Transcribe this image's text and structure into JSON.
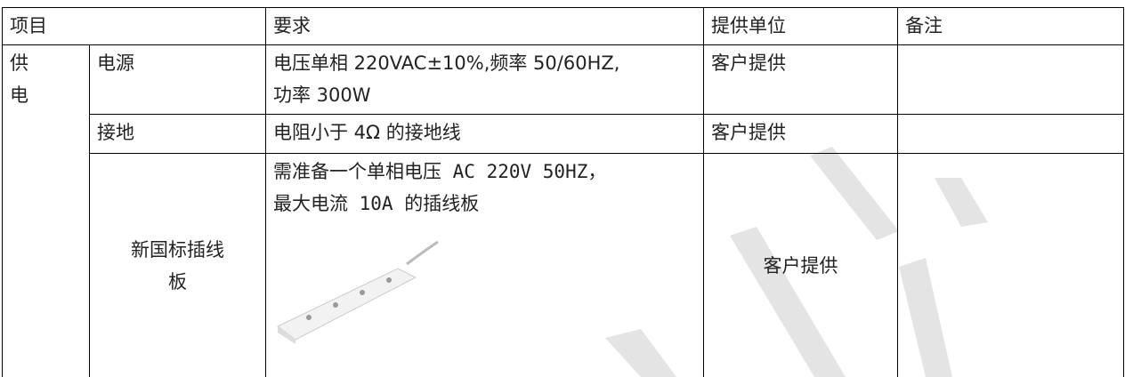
{
  "table": {
    "header": [
      "项目",
      "要求",
      "提供单位",
      "备注"
    ],
    "group": [
      "供",
      "电"
    ],
    "rows": [
      {
        "item": "电源",
        "requirement": [
          "电压单相 220VAC±10%,频率 50/60HZ,",
          "功率 300W"
        ],
        "provider": "客户提供"
      },
      {
        "item": "接地",
        "requirement": [
          "电阻小于 4Ω 的接地线"
        ],
        "provider": "客户提供"
      },
      {
        "item": [
          "新国标插线",
          "板"
        ],
        "requirement": [
          "需准备一个单相电压 AC 220V 50HZ，",
          "最大电流 10A 的插线板"
        ],
        "provider": "客户提供"
      }
    ]
  }
}
